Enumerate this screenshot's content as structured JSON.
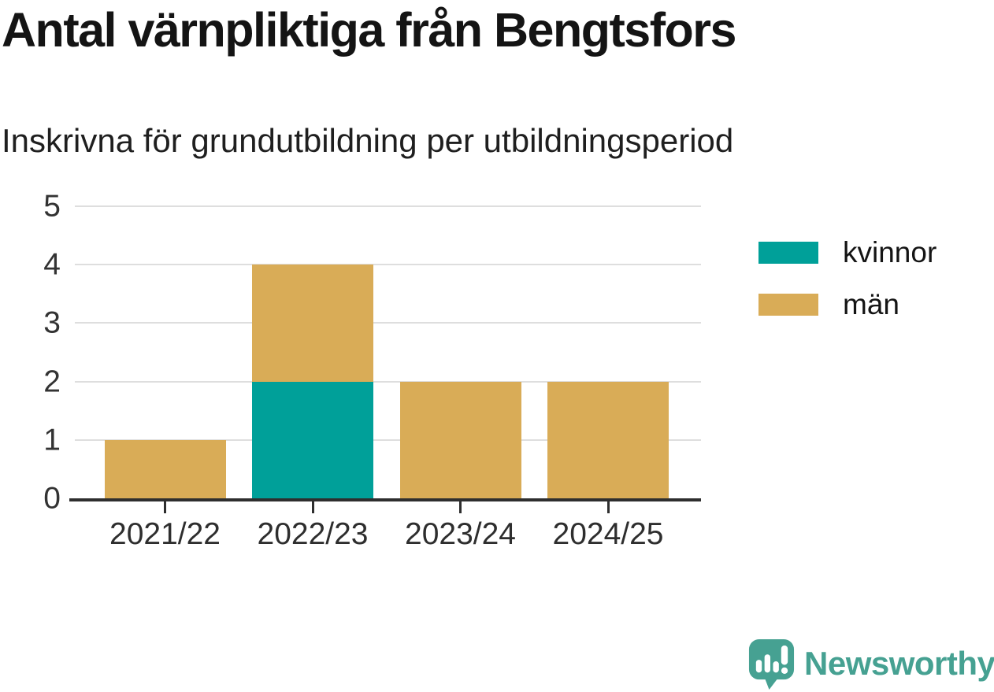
{
  "header": {
    "title": "Antal värnpliktiga från Bengtsfors",
    "subtitle": "Inskrivna för grundutbildning per utbildningsperiod"
  },
  "chart_data": {
    "type": "bar",
    "stacked": true,
    "title": "Antal värnpliktiga från Bengtsfors",
    "subtitle": "Inskrivna för grundutbildning per utbildningsperiod",
    "categories": [
      "2021/22",
      "2022/23",
      "2023/24",
      "2024/25"
    ],
    "series": [
      {
        "name": "kvinnor",
        "color": "#00a099",
        "values": [
          0,
          2,
          0,
          0
        ]
      },
      {
        "name": "män",
        "color": "#d9ac57",
        "values": [
          1,
          2,
          2,
          2
        ]
      }
    ],
    "totals": [
      1,
      4,
      2,
      2
    ],
    "xlabel": "",
    "ylabel": "",
    "ylim": [
      0,
      5
    ],
    "yticks": [
      0,
      1,
      2,
      3,
      4,
      5
    ],
    "grid": true,
    "legend_position": "right"
  },
  "branding": {
    "logo_text": "Newsworthy",
    "logo_color": "#46a192",
    "icon": "newsworthy-speech-bubble-chart-icon"
  },
  "colors": {
    "kvinnor": "#00a099",
    "man": "#d9ac57",
    "axis": "#2e2e2e",
    "gridline": "#dedede",
    "text": "#141414"
  }
}
